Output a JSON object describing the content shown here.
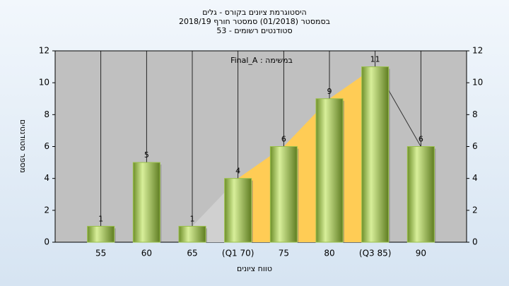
{
  "chart_data": {
    "type": "bar",
    "title": "היסטוגרמת ציונים בקורס - גלים",
    "subtitle": "בסמסטר  (01/2018)  סמסטר חורף 2018/19",
    "subtitle2": "53 - סטודנטים רשומים",
    "annotation": "Final_A : במשימה",
    "xlabel": "טווח ציונים",
    "ylabel": "מספר סטודנטים",
    "categories": [
      "55",
      "60",
      "65",
      "(Q1 70)",
      "75",
      "80",
      "(Q3 85)",
      "90"
    ],
    "values": [
      1,
      5,
      1,
      4,
      6,
      9,
      11,
      6
    ],
    "color": "#9ac04a",
    "area_color": "#ffcc55",
    "ylim": [
      0,
      12
    ],
    "yticks": [
      0,
      2,
      4,
      6,
      8,
      10,
      12
    ],
    "y2lim": [
      0,
      12
    ],
    "y2ticks": [
      0,
      2,
      4,
      6,
      8,
      10,
      12
    ]
  }
}
